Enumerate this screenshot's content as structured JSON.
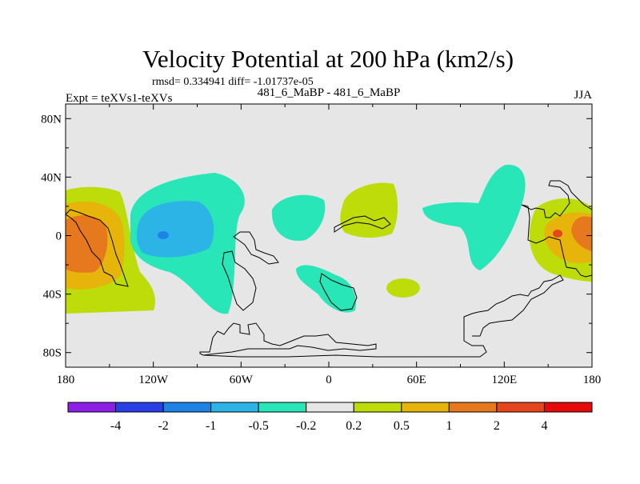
{
  "chart_data": {
    "type": "heatmap",
    "title": "Velocity Potential at 200 hPa (km2/s)",
    "stats": "rmsd= 0.334941 diff= -1.01737e-05",
    "left_label": "Expt = teXVs1-teXVs",
    "center_label": "481_6_MaBP - 481_6_MaBP",
    "right_label": "JJA",
    "x_ticks": [
      {
        "lon": -180,
        "label": "180"
      },
      {
        "lon": -120,
        "label": "120W"
      },
      {
        "lon": -60,
        "label": "60W"
      },
      {
        "lon": 0,
        "label": "0"
      },
      {
        "lon": 60,
        "label": "60E"
      },
      {
        "lon": 120,
        "label": "120E"
      },
      {
        "lon": 180,
        "label": "180"
      }
    ],
    "y_ticks": [
      {
        "lat": 80,
        "label": "80N"
      },
      {
        "lat": 40,
        "label": "40N"
      },
      {
        "lat": 0,
        "label": "0"
      },
      {
        "lat": -40,
        "label": "40S"
      },
      {
        "lat": -80,
        "label": "80S"
      }
    ],
    "xlim": [
      -180,
      180
    ],
    "ylim": [
      -90,
      90
    ],
    "colorbar": {
      "colors": [
        "#8c1ee6",
        "#2a3ee6",
        "#1e82e6",
        "#2cb4e6",
        "#28e6b8",
        "#e6e6e6",
        "#bedc0a",
        "#e6b40a",
        "#e6781e",
        "#e6461e",
        "#e60a0a"
      ],
      "levels": [
        "-4",
        "-2",
        "-1",
        "-0.5",
        "-0.2",
        "0.2",
        "0.5",
        "1",
        "2",
        "4"
      ]
    }
  }
}
